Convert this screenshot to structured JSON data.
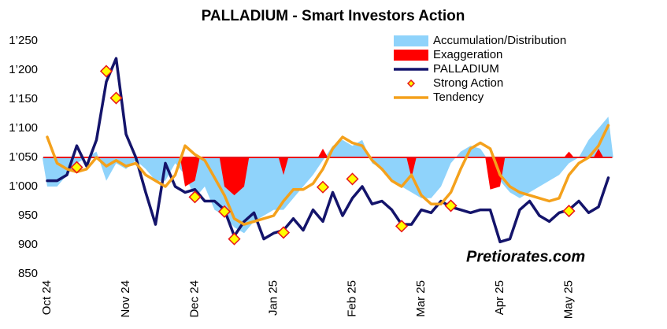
{
  "chart_data": {
    "type": "line",
    "title": "PALLADIUM - Smart Investors Action",
    "annotation": "Pretiorates.com",
    "categories": [
      "Oct 24",
      null,
      null,
      null,
      null,
      null,
      null,
      null,
      "Nov 24",
      null,
      null,
      null,
      null,
      null,
      null,
      "Dec 24",
      null,
      null,
      null,
      null,
      null,
      null,
      null,
      "Jan 25",
      null,
      null,
      null,
      null,
      null,
      null,
      null,
      "Feb 25",
      null,
      null,
      null,
      null,
      null,
      null,
      "Mar 25",
      null,
      null,
      null,
      null,
      null,
      null,
      null,
      "Apr 25",
      null,
      null,
      null,
      null,
      null,
      null,
      "May 25",
      null,
      null,
      null,
      null
    ],
    "ylim": [
      850,
      1250
    ],
    "yticks": [
      {
        "value": 850,
        "label": "850"
      },
      {
        "value": 900,
        "label": "900"
      },
      {
        "value": 950,
        "label": "950"
      },
      {
        "value": 1000,
        "label": "1’000"
      },
      {
        "value": 1050,
        "label": "1’050"
      },
      {
        "value": 1100,
        "label": "1’100"
      },
      {
        "value": 1150,
        "label": "1’150"
      },
      {
        "value": 1200,
        "label": "1’200"
      },
      {
        "value": 1250,
        "label": "1’250"
      }
    ],
    "baseline": 1050,
    "baseline_color": "#e8141b",
    "series": [
      {
        "name": "Accumulation/Distribution",
        "style": "area",
        "color": "#8fd3fb",
        "values": [
          1000,
          1000,
          1020,
          1040,
          1050,
          1060,
          1010,
          1040,
          1030,
          1045,
          1030,
          1010,
          1010,
          1040,
          1020,
          980,
          1000,
          960,
          950,
          930,
          920,
          940,
          950,
          960,
          960,
          980,
          1000,
          1020,
          1045,
          1070,
          1080,
          1070,
          1080,
          1040,
          1030,
          1010,
          1000,
          990,
          980,
          980,
          1000,
          1040,
          1060,
          1070,
          1065,
          1040,
          1010,
          990,
          980,
          990,
          1000,
          1010,
          1020,
          1040,
          1050,
          1080,
          1100,
          1120
        ]
      },
      {
        "name": "Exaggeration",
        "style": "area",
        "color": "#ff0000",
        "values": [
          null,
          null,
          null,
          null,
          null,
          null,
          null,
          null,
          null,
          null,
          null,
          null,
          null,
          null,
          1000,
          1010,
          null,
          null,
          1000,
          985,
          1000,
          null,
          null,
          null,
          1020,
          null,
          null,
          null,
          1065,
          null,
          null,
          null,
          null,
          null,
          null,
          null,
          null,
          1015,
          null,
          null,
          null,
          null,
          null,
          null,
          null,
          995,
          1000,
          null,
          null,
          null,
          null,
          null,
          null,
          1060,
          null,
          null,
          1065,
          null
        ]
      },
      {
        "name": "PALLADIUM",
        "style": "line",
        "color": "#14146b",
        "width": 3.5,
        "values": [
          1010,
          1010,
          1020,
          1070,
          1035,
          1080,
          1180,
          1220,
          1090,
          1050,
          990,
          935,
          1040,
          1000,
          990,
          995,
          975,
          975,
          960,
          915,
          940,
          955,
          910,
          920,
          925,
          945,
          925,
          960,
          940,
          990,
          950,
          980,
          1000,
          970,
          975,
          960,
          935,
          935,
          960,
          955,
          975,
          965,
          960,
          955,
          960,
          960,
          905,
          910,
          960,
          975,
          950,
          940,
          955,
          960,
          975,
          955,
          965,
          1015
        ]
      },
      {
        "name": "Strong Action",
        "style": "marker",
        "color": "#ffff00",
        "stroke": "#e8141b",
        "values": [
          null,
          null,
          null,
          1033,
          null,
          null,
          1198,
          1152,
          null,
          null,
          null,
          null,
          null,
          null,
          null,
          982,
          null,
          null,
          957,
          910,
          null,
          null,
          null,
          null,
          921,
          null,
          null,
          null,
          999,
          null,
          null,
          1013,
          null,
          null,
          null,
          null,
          932,
          null,
          null,
          null,
          null,
          967,
          null,
          null,
          null,
          null,
          null,
          null,
          null,
          null,
          null,
          null,
          null,
          958,
          null,
          null,
          null,
          null
        ]
      },
      {
        "name": "Tendency",
        "style": "line",
        "color": "#f4a11c",
        "width": 3.5,
        "values": [
          1085,
          1040,
          1030,
          1025,
          1030,
          1050,
          1035,
          1045,
          1035,
          1040,
          1020,
          1010,
          1000,
          1020,
          1070,
          1055,
          1045,
          1015,
          985,
          945,
          935,
          940,
          945,
          950,
          975,
          995,
          995,
          1005,
          1030,
          1065,
          1085,
          1075,
          1070,
          1045,
          1030,
          1010,
          1000,
          1020,
          985,
          970,
          970,
          990,
          1030,
          1065,
          1075,
          1065,
          1020,
          1000,
          990,
          985,
          980,
          975,
          980,
          1020,
          1040,
          1050,
          1070,
          1105
        ]
      }
    ]
  }
}
